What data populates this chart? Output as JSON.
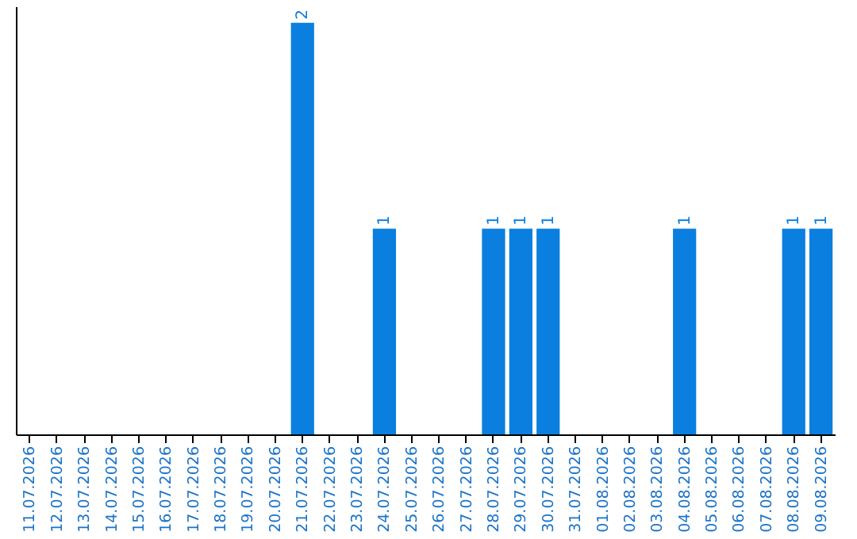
{
  "chart_data": {
    "type": "bar",
    "categories": [
      "11.07.2026",
      "12.07.2026",
      "13.07.2026",
      "14.07.2026",
      "15.07.2026",
      "16.07.2026",
      "17.07.2026",
      "18.07.2026",
      "19.07.2026",
      "20.07.2026",
      "21.07.2026",
      "22.07.2026",
      "23.07.2026",
      "24.07.2026",
      "25.07.2026",
      "26.07.2026",
      "27.07.2026",
      "28.07.2026",
      "29.07.2026",
      "30.07.2026",
      "31.07.2026",
      "01.08.2026",
      "02.08.2026",
      "03.08.2026",
      "04.08.2026",
      "05.08.2026",
      "06.08.2026",
      "07.08.2026",
      "08.08.2026",
      "09.08.2026"
    ],
    "values": [
      0,
      0,
      0,
      0,
      0,
      0,
      0,
      0,
      0,
      0,
      2,
      0,
      0,
      1,
      0,
      0,
      0,
      1,
      1,
      1,
      0,
      0,
      0,
      0,
      1,
      0,
      0,
      0,
      1,
      1
    ],
    "value_labels": [
      null,
      null,
      null,
      null,
      null,
      null,
      null,
      null,
      null,
      null,
      "2",
      null,
      null,
      "1",
      null,
      null,
      null,
      "1",
      "1",
      "1",
      null,
      null,
      null,
      null,
      "1",
      null,
      null,
      null,
      "1",
      "1"
    ],
    "color": "#0a7fe0",
    "ylim": [
      0,
      2.08
    ],
    "tick_labels": "x",
    "grid": false
  }
}
